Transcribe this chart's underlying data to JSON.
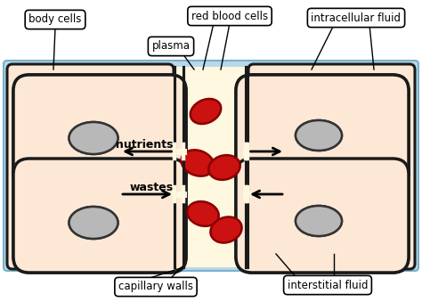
{
  "bg_color": "#b8d8ea",
  "cell_fill": "#fce8d5",
  "cell_edge": "#1a1a1a",
  "cap_fill": "#fef8e0",
  "nucleus_fill": "#b8b8b8",
  "nucleus_edge": "#333333",
  "rbc_fill": "#cc1111",
  "rbc_edge": "#880000",
  "label_box_fill": "#ffffff",
  "label_box_edge": "#000000",
  "arrow_color": "#000000",
  "white": "#ffffff",
  "labels": {
    "body_cells": "body cells",
    "plasma": "plasma",
    "red_blood_cells": "red blood cells",
    "intracellular_fluid": "intracellular fluid",
    "nutrients": "nutrients",
    "wastes": "wastes",
    "capillary_walls": "capillary walls",
    "interstitial_fluid": "interstitial fluid"
  },
  "fig_w": 4.74,
  "fig_h": 3.39,
  "dpi": 100
}
